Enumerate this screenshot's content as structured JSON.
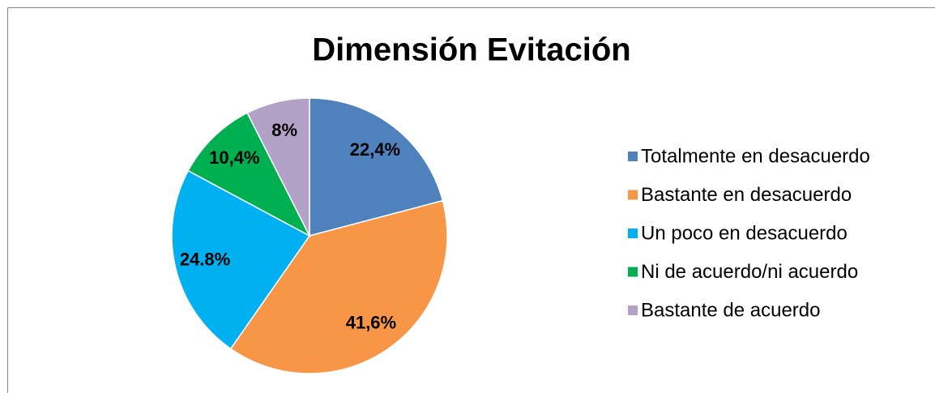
{
  "chart_data": {
    "type": "pie",
    "title": "Dimensión Evitación",
    "categories": [
      "Totalmente en desacuerdo",
      "Bastante en desacuerdo",
      "Un poco en desacuerdo",
      "Ni de acuerdo/ni acuerdo",
      "Bastante de acuerdo"
    ],
    "values": [
      22.4,
      41.6,
      24.8,
      10.4,
      8
    ],
    "value_labels": [
      "22,4%",
      "41,6%",
      "24.8%",
      "10,4%",
      "8%"
    ],
    "colors": [
      "#4f81bd",
      "#f79646",
      "#00b0f0",
      "#00b050",
      "#b3a2c7"
    ],
    "legend": "right"
  }
}
